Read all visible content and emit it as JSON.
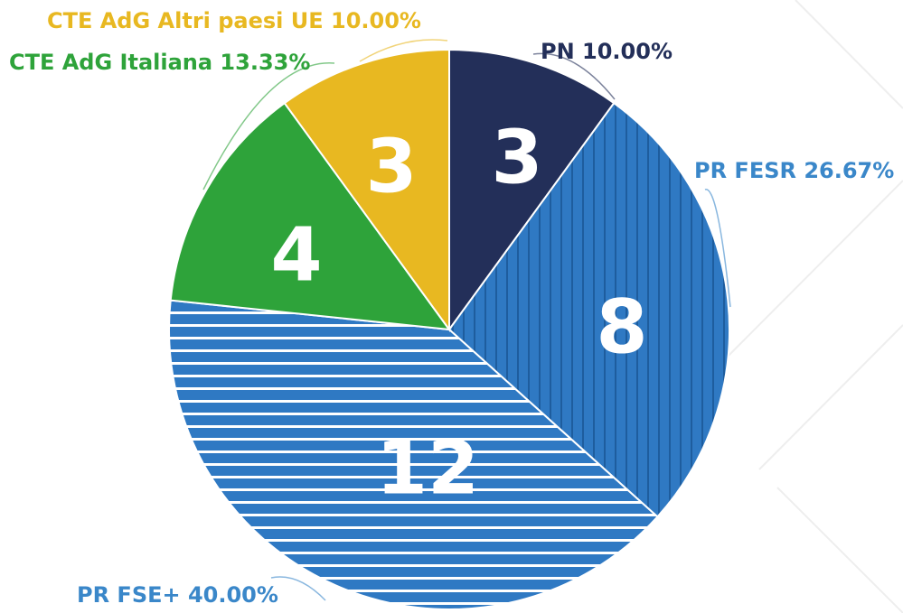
{
  "chart_data": {
    "type": "pie",
    "categories": [
      "PN 10.00%",
      "PR FESR 26.67%",
      "PR FSE+ 40.00%",
      "CTE AdG Italiana 13.33%",
      "CTE AdG Altri paesi UE 10.00%"
    ],
    "values": [
      3,
      8,
      12,
      4,
      3
    ],
    "colors": [
      "#232f59",
      "#2f79c3",
      "#2f79c3",
      "#2ea33a",
      "#e8b821"
    ],
    "label_colors": [
      "#232f59",
      "#3a87c9",
      "#3a87c9",
      "#2ea33a",
      "#e8b821"
    ],
    "hatch": [
      "none",
      "vertical",
      "horizontal",
      "none",
      "none"
    ]
  }
}
